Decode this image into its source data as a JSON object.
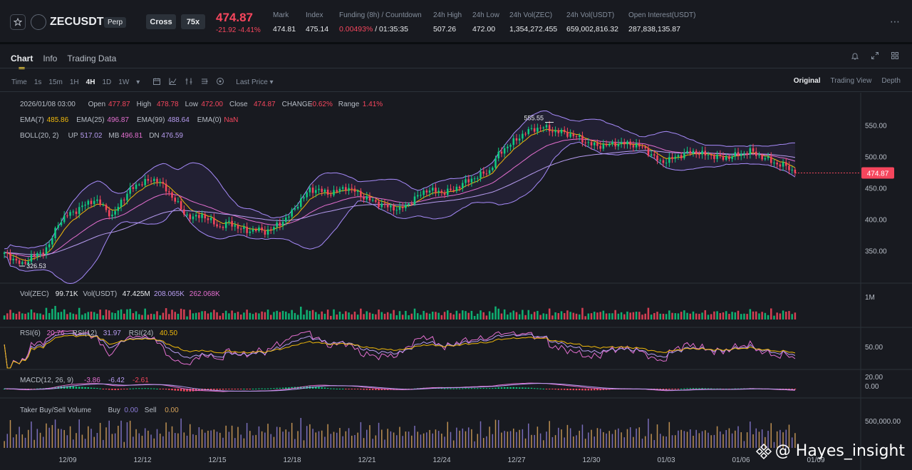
{
  "header": {
    "symbol": "ZECUSDT",
    "contract_type": "Perp",
    "margin_mode": "Cross",
    "leverage": "75x",
    "last_price": "474.87",
    "change": "-21.92 -4.41%",
    "stats": [
      {
        "label": "Mark",
        "value": "474.81"
      },
      {
        "label": "Index",
        "value": "475.14"
      },
      {
        "label": "Funding (8h) / Countdown",
        "value": "0.00493%",
        "value2": "/ 01:35:35"
      },
      {
        "label": "24h High",
        "value": "507.26"
      },
      {
        "label": "24h Low",
        "value": "472.00"
      },
      {
        "label": "24h Vol(ZEC)",
        "value": "1,354,272.455"
      },
      {
        "label": "24h Vol(USDT)",
        "value": "659,002,816.32"
      },
      {
        "label": "Open Interest(USDT)",
        "value": "287,838,135.87"
      }
    ]
  },
  "tabs": [
    "Chart",
    "Info",
    "Trading Data"
  ],
  "toolbar": {
    "intervals": [
      "Time",
      "1s",
      "15m",
      "1H",
      "4H",
      "1D",
      "1W"
    ],
    "active_interval": "4H",
    "price_type": "Last Price",
    "views": [
      "Original",
      "Trading View",
      "Depth"
    ],
    "active_view": "Original"
  },
  "legend": {
    "ohlc": {
      "date": "2026/01/08 03:00",
      "open": "477.87",
      "high": "478.78",
      "low": "472.00",
      "close": "474.87",
      "change": "-0.62%",
      "range": "1.41%"
    },
    "ema": [
      {
        "label": "EMA(7)",
        "value": "485.86",
        "color": "#f0b90b"
      },
      {
        "label": "EMA(25)",
        "value": "496.87",
        "color": "#e46fd0"
      },
      {
        "label": "EMA(99)",
        "value": "488.64",
        "color": "#b79cf0"
      },
      {
        "label": "EMA(0)",
        "value": "NaN",
        "color": "#f6465d"
      }
    ],
    "boll": {
      "label": "BOLL(20, 2)",
      "up": "517.02",
      "mb": "496.81",
      "dn": "476.59"
    },
    "vol": {
      "label": "Vol(ZEC)",
      "value": "99.71K",
      "label2": "Vol(USDT)",
      "value2": "47.425M",
      "ma1": "208.065K",
      "ma2": "262.068K"
    },
    "rsi": [
      {
        "label": "RSI(6)",
        "value": "20.76"
      },
      {
        "label": "RSI(12)",
        "value": "31.97"
      },
      {
        "label": "RSI(24)",
        "value": "40.50"
      }
    ],
    "macd": {
      "label": "MACD(12, 26, 9)",
      "v1": "-3.86",
      "v2": "-6.42",
      "v3": "-2.61"
    },
    "taker": {
      "label": "Taker Buy/Sell Volume",
      "buy_label": "Buy",
      "buy": "0.00",
      "sell_label": "Sell",
      "sell": "0.00"
    }
  },
  "chart_data": {
    "type": "candlestick",
    "interval": "4H",
    "x_tick_labels": [
      "12/09",
      "12/12",
      "12/15",
      "12/18",
      "12/21",
      "12/24",
      "12/27",
      "12/30",
      "01/03",
      "01/06",
      "01/09"
    ],
    "y_ticks": [
      350,
      400,
      450,
      500,
      550
    ],
    "y_range": [
      305,
      580
    ],
    "current_price": 474.87,
    "high_marker": 555.55,
    "low_marker": 326.53,
    "price_anchors": [
      [
        0,
        346
      ],
      [
        3,
        338
      ],
      [
        6,
        328
      ],
      [
        9,
        342
      ],
      [
        12,
        346
      ],
      [
        15,
        360
      ],
      [
        18,
        395
      ],
      [
        21,
        408
      ],
      [
        24,
        415
      ],
      [
        27,
        425
      ],
      [
        30,
        432
      ],
      [
        33,
        422
      ],
      [
        36,
        405
      ],
      [
        39,
        430
      ],
      [
        42,
        448
      ],
      [
        45,
        458
      ],
      [
        48,
        462
      ],
      [
        51,
        465
      ],
      [
        54,
        448
      ],
      [
        57,
        432
      ],
      [
        60,
        410
      ],
      [
        63,
        403
      ],
      [
        66,
        408
      ],
      [
        69,
        398
      ],
      [
        72,
        388
      ],
      [
        75,
        396
      ],
      [
        78,
        388
      ],
      [
        81,
        382
      ],
      [
        84,
        385
      ],
      [
        87,
        381
      ],
      [
        90,
        388
      ],
      [
        93,
        398
      ],
      [
        96,
        412
      ],
      [
        99,
        432
      ],
      [
        102,
        448
      ],
      [
        105,
        448
      ],
      [
        108,
        442
      ],
      [
        111,
        446
      ],
      [
        114,
        452
      ],
      [
        117,
        446
      ],
      [
        120,
        436
      ],
      [
        123,
        430
      ],
      [
        126,
        424
      ],
      [
        129,
        420
      ],
      [
        132,
        417
      ],
      [
        135,
        426
      ],
      [
        138,
        438
      ],
      [
        141,
        448
      ],
      [
        144,
        446
      ],
      [
        147,
        444
      ],
      [
        150,
        448
      ],
      [
        153,
        458
      ],
      [
        156,
        465
      ],
      [
        159,
        472
      ],
      [
        162,
        478
      ],
      [
        165,
        505
      ],
      [
        168,
        518
      ],
      [
        171,
        528
      ],
      [
        174,
        540
      ],
      [
        177,
        545
      ],
      [
        180,
        548
      ],
      [
        183,
        542
      ],
      [
        186,
        540
      ],
      [
        189,
        536
      ],
      [
        192,
        530
      ],
      [
        195,
        522
      ],
      [
        198,
        518
      ],
      [
        201,
        519
      ],
      [
        204,
        522
      ],
      [
        207,
        522
      ],
      [
        210,
        520
      ],
      [
        213,
        516
      ],
      [
        216,
        504
      ],
      [
        219,
        492
      ],
      [
        222,
        496
      ],
      [
        225,
        502
      ],
      [
        228,
        507
      ],
      [
        231,
        508
      ],
      [
        234,
        504
      ],
      [
        237,
        502
      ],
      [
        240,
        498
      ],
      [
        243,
        502
      ],
      [
        246,
        505
      ],
      [
        249,
        510
      ],
      [
        252,
        502
      ],
      [
        255,
        496
      ],
      [
        258,
        489
      ],
      [
        261,
        486
      ],
      [
        264,
        474.87
      ]
    ],
    "series": [
      {
        "name": "EMA(7)",
        "color": "#f0b90b"
      },
      {
        "name": "EMA(25)",
        "color": "#e46fd0"
      },
      {
        "name": "EMA(99)",
        "color": "#b79cf0"
      }
    ],
    "volume_axis_label": "1M",
    "rsi_axis_label": "50.00",
    "macd_axis_labels": [
      "20.00",
      "0.00"
    ],
    "taker_axis_label": "500,000.00"
  },
  "colors": {
    "up": "#0ecb81",
    "down": "#f6465d",
    "accent": "#fcd535",
    "band": "#a78bfa"
  },
  "icons": [
    "star-icon",
    "coin-icon",
    "more-icon",
    "bell-icon",
    "expand-icon",
    "grid-icon",
    "calendar-icon",
    "indicator-icon",
    "compare-icon",
    "settings-icon",
    "camera-icon",
    "chevron-down-icon"
  ],
  "watermark": "@ Hayes_insight"
}
